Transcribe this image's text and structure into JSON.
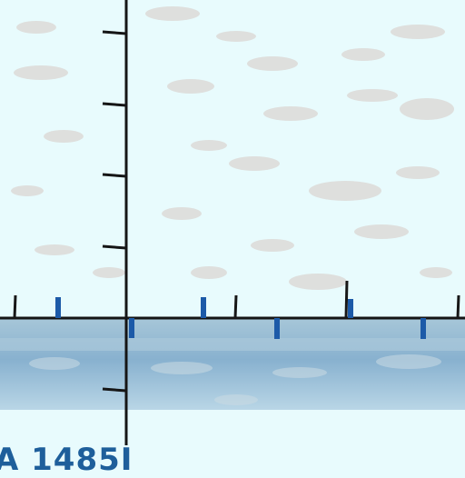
{
  "scene": {
    "bottom_label": "A 1485I",
    "colors": {
      "background": "#e8fbfd",
      "cloud": "#dcd9d6",
      "axis": "#151515",
      "tick_dark": "#171717",
      "tick_blue": "#1c5aa8",
      "water_top": "#a6c6d8",
      "water_mid": "#88b1cf",
      "water_bottom": "#b9d6e6",
      "band": "#d7f2f6",
      "label": "#1e5f9b"
    },
    "icons": {
      "vertical_axis": "vertical-axis-line",
      "horizontal_axis": "horizontal-axis-line"
    }
  }
}
